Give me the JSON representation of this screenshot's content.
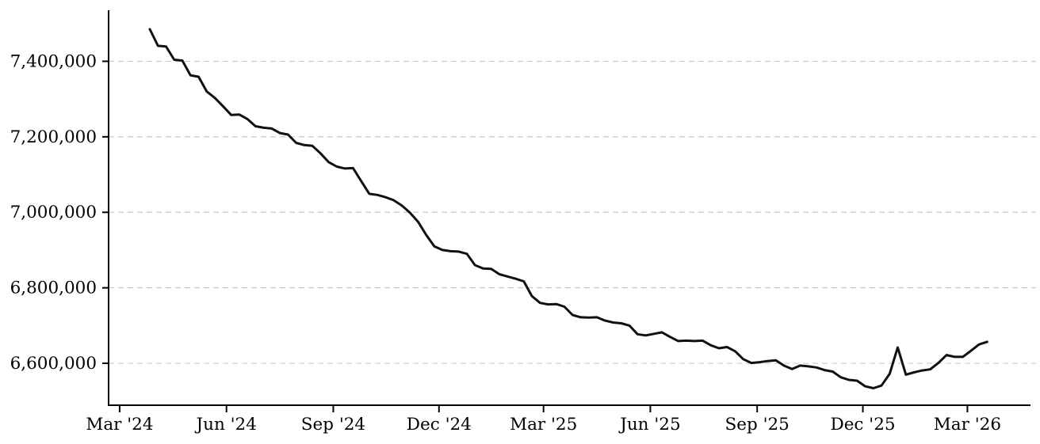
{
  "chart_data": {
    "type": "line",
    "title": "",
    "x_start_date": "2024-03-27",
    "x_interval_days": 7,
    "values": [
      7485000,
      7441000,
      7439000,
      7404000,
      7402000,
      7363000,
      7359000,
      7320000,
      7303000,
      7281000,
      7258000,
      7259000,
      7247000,
      7228000,
      7224000,
      7222000,
      7210000,
      7206000,
      7184000,
      7178000,
      7176000,
      7156000,
      7133000,
      7121000,
      7116000,
      7117000,
      7083000,
      7049000,
      7046000,
      7040000,
      7032000,
      7018000,
      6999000,
      6975000,
      6940000,
      6910000,
      6900000,
      6897000,
      6896000,
      6890000,
      6860000,
      6851000,
      6850000,
      6836000,
      6830000,
      6824000,
      6817000,
      6778000,
      6760000,
      6756000,
      6757000,
      6750000,
      6728000,
      6722000,
      6721000,
      6722000,
      6713000,
      6708000,
      6706000,
      6700000,
      6677000,
      6674000,
      6678000,
      6682000,
      6670000,
      6659000,
      6660000,
      6659000,
      6660000,
      6648000,
      6640000,
      6643000,
      6632000,
      6611000,
      6601000,
      6603000,
      6606000,
      6608000,
      6594000,
      6585000,
      6594000,
      6592000,
      6589000,
      6582000,
      6578000,
      6563000,
      6556000,
      6554000,
      6539000,
      6534000,
      6541000,
      6572000,
      6642000,
      6570000,
      6576000,
      6581000,
      6584000,
      6601000,
      6622000,
      6617000,
      6617000,
      6633000,
      6650000,
      6657000
    ],
    "x_tick_labels": [
      "Mar '24",
      "Jun '24",
      "Sep '24",
      "Dec '24",
      "Mar '25",
      "Jun '25",
      "Sep '25",
      "Dec '25",
      "Mar '26"
    ],
    "x_tick_week_positions": [
      -3.71,
      9.43,
      22.57,
      35.57,
      48.43,
      61.57,
      74.71,
      87.71,
      100.57
    ],
    "y_tick_labels": [
      "6,600,000",
      "6,800,000",
      "7,000,000",
      "7,200,000",
      "7,400,000"
    ],
    "y_tick_values": [
      6600000,
      6800000,
      7000000,
      7200000,
      7400000
    ],
    "ylim": [
      6489000,
      7533000
    ],
    "xlim_weeks": [
      -5.07,
      108.33
    ],
    "grid": "horizontal-dashed",
    "legend": "none",
    "line_color": "#111111",
    "grid_color": "#c9c9c9",
    "axis_color": "#000000",
    "background": "#ffffff"
  }
}
